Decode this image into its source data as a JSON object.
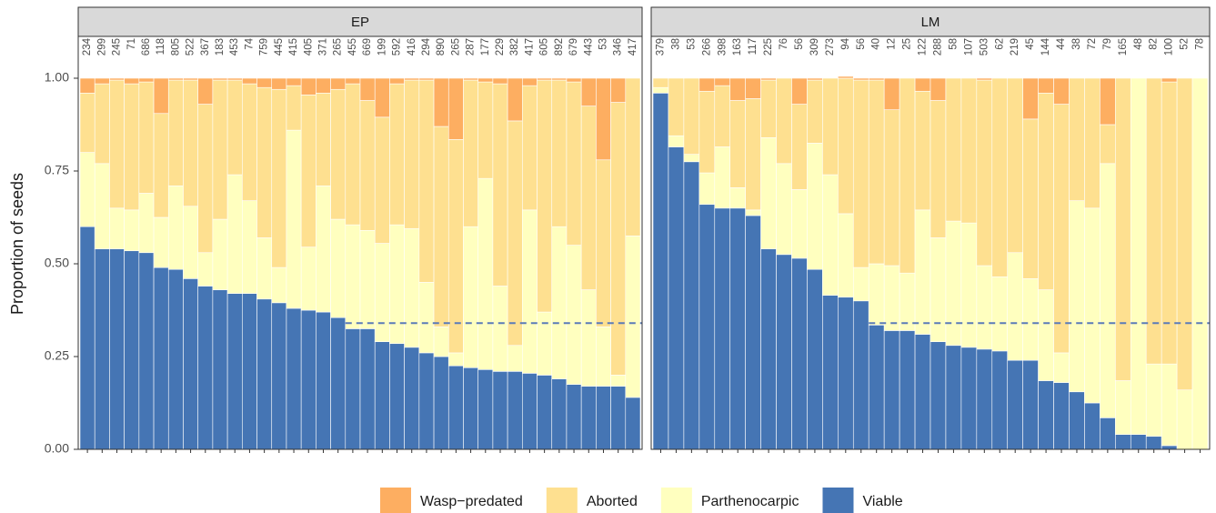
{
  "chart_data": {
    "type": "bar",
    "stacked": true,
    "ylabel": "Proportion of seeds",
    "ylim": [
      0,
      1
    ],
    "yticks": [
      {
        "value": 0,
        "label": "0.00"
      },
      {
        "value": 0.25,
        "label": "0.25"
      },
      {
        "value": 0.5,
        "label": "0.50"
      },
      {
        "value": 0.75,
        "label": "0.75"
      },
      {
        "value": 1,
        "label": "1.00"
      }
    ],
    "hline": 0.34,
    "hline_color": "#5a7ab8",
    "series": [
      {
        "name": "Wasp−predated",
        "color": "#fdae61"
      },
      {
        "name": "Aborted",
        "color": "#fee090"
      },
      {
        "name": "Parthenocarpic",
        "color": "#ffffbf"
      },
      {
        "name": "Viable",
        "color": "#4575b4"
      }
    ],
    "facets": [
      {
        "title": "EP",
        "categories": [
          "234",
          "299",
          "245",
          "71",
          "686",
          "118",
          "805",
          "522",
          "367",
          "183",
          "453",
          "74",
          "759",
          "445",
          "415",
          "405",
          "371",
          "265",
          "455",
          "669",
          "199",
          "592",
          "416",
          "294",
          "890",
          "265",
          "287",
          "177",
          "229",
          "382",
          "417",
          "605",
          "892",
          "679",
          "443",
          "53",
          "346",
          "417"
        ],
        "values": [
          [
            0.04,
            0.015,
            0.005,
            0.015,
            0.01,
            0.095,
            0.005,
            0.005,
            0.07,
            0.005,
            0.005,
            0.015,
            0.025,
            0.03,
            0.02,
            0.045,
            0.04,
            0.03,
            0.015,
            0.06,
            0.105,
            0.015,
            0.005,
            0.005,
            0.13,
            0.165,
            0.005,
            0.01,
            0.015,
            0.115,
            0.02,
            0.005,
            0.005,
            0.01,
            0.075,
            0.22,
            0.065,
            0
          ],
          [
            0.16,
            0.215,
            0.345,
            0.34,
            0.3,
            0.28,
            0.285,
            0.34,
            0.4,
            0.375,
            0.255,
            0.315,
            0.405,
            0.48,
            0.12,
            0.41,
            0.25,
            0.35,
            0.38,
            0.35,
            0.34,
            0.38,
            0.4,
            0.545,
            0.54,
            0.575,
            0.395,
            0.26,
            0.545,
            0.605,
            0.335,
            0.625,
            0.395,
            0.44,
            0.495,
            0.45,
            0.735,
            0.425
          ],
          [
            0.2,
            0.23,
            0.11,
            0.11,
            0.16,
            0.135,
            0.225,
            0.195,
            0.09,
            0.19,
            0.32,
            0.25,
            0.165,
            0.095,
            0.48,
            0.17,
            0.34,
            0.265,
            0.28,
            0.265,
            0.265,
            0.32,
            0.32,
            0.19,
            0.08,
            0.035,
            0.38,
            0.515,
            0.23,
            0.07,
            0.44,
            0.17,
            0.41,
            0.375,
            0.26,
            0.16,
            0.03,
            0.435
          ],
          [
            0.6,
            0.54,
            0.54,
            0.535,
            0.53,
            0.49,
            0.485,
            0.46,
            0.44,
            0.43,
            0.42,
            0.42,
            0.405,
            0.395,
            0.38,
            0.375,
            0.37,
            0.355,
            0.325,
            0.325,
            0.29,
            0.285,
            0.275,
            0.26,
            0.25,
            0.225,
            0.22,
            0.215,
            0.21,
            0.21,
            0.205,
            0.2,
            0.19,
            0.175,
            0.17,
            0.17,
            0.17,
            0.14
          ]
        ]
      },
      {
        "title": "LM",
        "categories": [
          "379",
          "38",
          "53",
          "266",
          "398",
          "163",
          "117",
          "225",
          "76",
          "56",
          "309",
          "273",
          "94",
          "56",
          "40",
          "12",
          "25",
          "122",
          "288",
          "58",
          "107",
          "503",
          "62",
          "219",
          "45",
          "144",
          "44",
          "38",
          "72",
          "79",
          "165",
          "48",
          "82",
          "100",
          "52",
          "78"
        ],
        "values": [
          [
            0,
            0,
            0,
            0.035,
            0.02,
            0.06,
            0.055,
            0.005,
            0,
            0.07,
            0.005,
            0,
            0.005,
            0.005,
            0.005,
            0.085,
            0,
            0.035,
            0.06,
            0,
            0,
            0.005,
            0,
            0,
            0.11,
            0.04,
            0.07,
            0,
            0,
            0.125,
            0,
            0,
            0,
            0.01,
            0,
            0
          ],
          [
            0.025,
            0.155,
            0.205,
            0.22,
            0.165,
            0.235,
            0.3,
            0.155,
            0.23,
            0.23,
            0.17,
            0.26,
            0.365,
            0.505,
            0.495,
            0.42,
            0.525,
            0.32,
            0.37,
            0.385,
            0.39,
            0.5,
            0.535,
            0.47,
            0.43,
            0.53,
            0.67,
            0.33,
            0.35,
            0.105,
            0.815,
            0,
            0.77,
            0.76,
            0.84,
            0
          ],
          [
            0.015,
            0.03,
            0.02,
            0.085,
            0.165,
            0.055,
            0.015,
            0.3,
            0.245,
            0.185,
            0.34,
            0.325,
            0.225,
            0.09,
            0.165,
            0.175,
            0.155,
            0.335,
            0.28,
            0.335,
            0.335,
            0.225,
            0.2,
            0.29,
            0.22,
            0.245,
            0.08,
            0.515,
            0.525,
            0.685,
            0.145,
            0.96,
            0.195,
            0.22,
            0.16,
            1
          ],
          [
            0.96,
            0.815,
            0.775,
            0.66,
            0.65,
            0.65,
            0.63,
            0.54,
            0.525,
            0.515,
            0.485,
            0.415,
            0.41,
            0.4,
            0.335,
            0.32,
            0.32,
            0.31,
            0.29,
            0.28,
            0.275,
            0.27,
            0.265,
            0.24,
            0.24,
            0.185,
            0.18,
            0.155,
            0.125,
            0.085,
            0.04,
            0.04,
            0.035,
            0.01,
            0,
            0
          ]
        ]
      }
    ]
  }
}
